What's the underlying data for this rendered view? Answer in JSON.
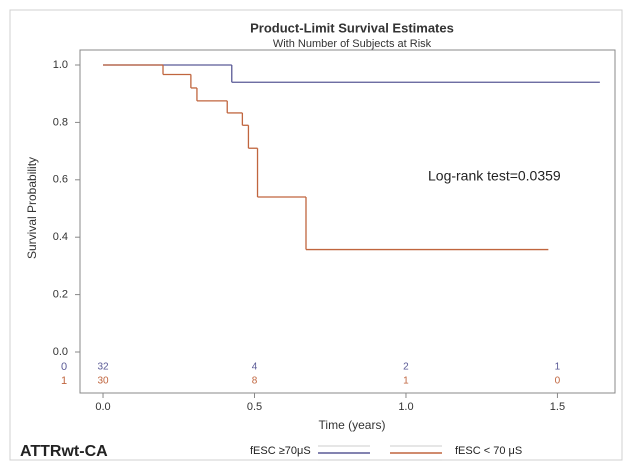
{
  "chart_data": {
    "type": "step",
    "title": "Product-Limit Survival Estimates",
    "subtitle": "With Number of Subjects at Risk",
    "x_label": "Time (years)",
    "y_label": "Survival Probability",
    "annotation": "Log-rank test=0.0359",
    "panel_label": "ATTRwt-CA",
    "xlim": [
      -0.076,
      1.69
    ],
    "ylim": [
      0,
      1
    ],
    "xticks": [
      {
        "value": 0,
        "label": "0.0"
      },
      {
        "value": 0.5,
        "label": "0.5"
      },
      {
        "value": 1,
        "label": "1.0"
      },
      {
        "value": 1.5,
        "label": "1.5"
      }
    ],
    "yticks": [
      {
        "value": 0,
        "label": "0.0"
      },
      {
        "value": 0.2,
        "label": "0.2"
      },
      {
        "value": 0.4,
        "label": "0.4"
      },
      {
        "value": 0.6,
        "label": "0.6"
      },
      {
        "value": 0.8,
        "label": "0.8"
      },
      {
        "value": 1,
        "label": "1.0"
      }
    ],
    "series": [
      {
        "name": "fESC ≥70μS",
        "color": "#5a5a96",
        "x": [
          0,
          0.425,
          1.64
        ],
        "values": [
          1.0,
          0.94,
          0.94
        ]
      },
      {
        "name": "fESC < 70 μS",
        "color": "#c0653e",
        "x": [
          0,
          0.198,
          0.29,
          0.31,
          0.41,
          0.46,
          0.48,
          0.51,
          0.67,
          1.47
        ],
        "values": [
          1.0,
          0.967,
          0.92,
          0.875,
          0.833,
          0.79,
          0.71,
          0.54,
          0.357,
          0.357
        ]
      }
    ],
    "at_risk": {
      "times": [
        0,
        0.5,
        1,
        1.5
      ],
      "rows": [
        {
          "label": "0",
          "color": "#5a5a96",
          "counts": [
            32,
            4,
            2,
            1
          ]
        },
        {
          "label": "1",
          "color": "#c0653e",
          "counts": [
            30,
            8,
            1,
            0
          ]
        }
      ]
    }
  }
}
